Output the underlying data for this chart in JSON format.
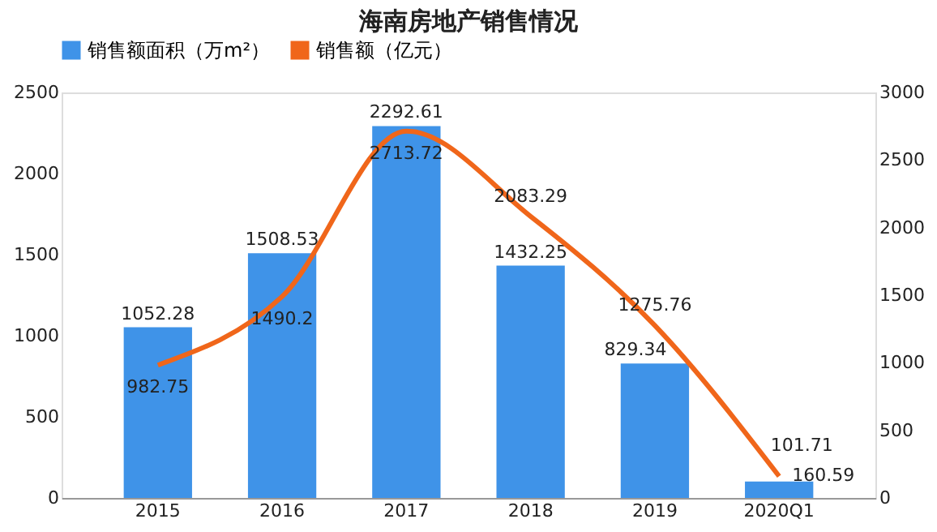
{
  "chart_data": {
    "type": "bar",
    "title": "海南房地产销售情况",
    "categories": [
      "2015",
      "2016",
      "2017",
      "2018",
      "2019",
      "2020Q1"
    ],
    "series": [
      {
        "name": "销售额面积（万m²）",
        "axis": "y",
        "color": "#3f93e8",
        "values": [
          1052.28,
          1508.53,
          2292.61,
          1432.25,
          829.34,
          101.71
        ]
      },
      {
        "name": "销售额（亿元）",
        "type": "line",
        "axis": "y2",
        "color": "#f0661a",
        "values": [
          982.75,
          1490.2,
          2713.72,
          2083.29,
          1275.76,
          160.59
        ]
      }
    ],
    "ylim": [
      0,
      2500
    ],
    "yticks": [
      0,
      500,
      1000,
      1500,
      2000,
      2500
    ],
    "y2lim": [
      0,
      3000
    ],
    "y2ticks": [
      0,
      500,
      1000,
      1500,
      2000,
      2500,
      3000
    ],
    "data_labels": true,
    "legend": "top",
    "grid": false,
    "marker": "none",
    "line_style": "solid"
  }
}
